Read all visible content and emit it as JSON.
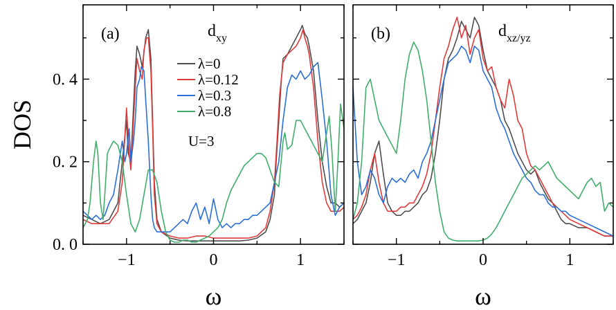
{
  "chart_data": [
    {
      "type": "line",
      "panel_label": "(a)",
      "orbital_main": "d",
      "orbital_sub": "xy",
      "xlabel": "ω",
      "ylabel": "DOS",
      "xlim": [
        -1.5,
        1.5
      ],
      "ylim": [
        0.0,
        0.58
      ],
      "xticks": [
        -1,
        0,
        1
      ],
      "xtick_labels": [
        "−1",
        "0",
        "1"
      ],
      "yticks": [
        0.0,
        0.2,
        0.4
      ],
      "ytick_labels": [
        "0. 0",
        "0. 2",
        "0. 4"
      ],
      "annotation": "U=3",
      "legend_position": "center-left",
      "series": [
        {
          "name": "λ=0",
          "color": "#4d4d4d",
          "x": [
            -1.5,
            -1.4,
            -1.3,
            -1.2,
            -1.1,
            -1.05,
            -1.0,
            -0.98,
            -0.95,
            -0.9,
            -0.88,
            -0.85,
            -0.82,
            -0.78,
            -0.75,
            -0.72,
            -0.7,
            -0.68,
            -0.65,
            -0.6,
            -0.5,
            -0.4,
            -0.3,
            -0.2,
            -0.1,
            0.0,
            0.1,
            0.2,
            0.3,
            0.4,
            0.5,
            0.6,
            0.65,
            0.7,
            0.72,
            0.75,
            0.78,
            0.8,
            0.85,
            0.9,
            0.95,
            1.0,
            1.02,
            1.05,
            1.08,
            1.1,
            1.15,
            1.2,
            1.25,
            1.3,
            1.35,
            1.4,
            1.45,
            1.5
          ],
          "y": [
            0.07,
            0.06,
            0.05,
            0.06,
            0.1,
            0.2,
            0.3,
            0.22,
            0.2,
            0.42,
            0.48,
            0.46,
            0.43,
            0.5,
            0.52,
            0.45,
            0.3,
            0.15,
            0.06,
            0.03,
            0.015,
            0.01,
            0.008,
            0.008,
            0.008,
            0.008,
            0.008,
            0.008,
            0.008,
            0.01,
            0.015,
            0.03,
            0.06,
            0.12,
            0.2,
            0.3,
            0.4,
            0.45,
            0.46,
            0.48,
            0.5,
            0.52,
            0.53,
            0.51,
            0.5,
            0.48,
            0.42,
            0.3,
            0.2,
            0.14,
            0.1,
            0.1,
            0.09,
            0.1
          ]
        },
        {
          "name": "λ=0.12",
          "color": "#e03a3a",
          "x": [
            -1.5,
            -1.4,
            -1.3,
            -1.2,
            -1.1,
            -1.05,
            -1.0,
            -0.97,
            -0.95,
            -0.92,
            -0.9,
            -0.88,
            -0.85,
            -0.82,
            -0.8,
            -0.77,
            -0.75,
            -0.72,
            -0.7,
            -0.68,
            -0.65,
            -0.6,
            -0.5,
            -0.4,
            -0.3,
            -0.2,
            -0.1,
            0.0,
            0.1,
            0.2,
            0.3,
            0.4,
            0.5,
            0.6,
            0.65,
            0.7,
            0.73,
            0.76,
            0.8,
            0.85,
            0.9,
            0.95,
            1.0,
            1.03,
            1.05,
            1.08,
            1.1,
            1.15,
            1.2,
            1.25,
            1.3,
            1.35,
            1.4,
            1.45,
            1.5
          ],
          "y": [
            0.06,
            0.05,
            0.05,
            0.05,
            0.08,
            0.15,
            0.33,
            0.22,
            0.18,
            0.3,
            0.38,
            0.45,
            0.42,
            0.4,
            0.47,
            0.5,
            0.5,
            0.42,
            0.28,
            0.12,
            0.05,
            0.03,
            0.02,
            0.015,
            0.015,
            0.02,
            0.02,
            0.015,
            0.015,
            0.015,
            0.015,
            0.015,
            0.02,
            0.04,
            0.08,
            0.15,
            0.25,
            0.36,
            0.44,
            0.46,
            0.47,
            0.48,
            0.5,
            0.52,
            0.5,
            0.48,
            0.46,
            0.38,
            0.25,
            0.15,
            0.1,
            0.08,
            0.08,
            0.08,
            0.09
          ]
        },
        {
          "name": "λ=0.3",
          "color": "#2a6fd6",
          "x": [
            -1.5,
            -1.45,
            -1.4,
            -1.35,
            -1.3,
            -1.25,
            -1.2,
            -1.15,
            -1.1,
            -1.05,
            -1.02,
            -1.0,
            -0.97,
            -0.95,
            -0.92,
            -0.9,
            -0.88,
            -0.85,
            -0.83,
            -0.8,
            -0.78,
            -0.75,
            -0.72,
            -0.7,
            -0.68,
            -0.65,
            -0.6,
            -0.55,
            -0.5,
            -0.45,
            -0.4,
            -0.35,
            -0.3,
            -0.25,
            -0.2,
            -0.15,
            -0.1,
            -0.05,
            0.0,
            0.05,
            0.1,
            0.15,
            0.2,
            0.25,
            0.3,
            0.35,
            0.4,
            0.45,
            0.5,
            0.55,
            0.6,
            0.65,
            0.7,
            0.75,
            0.8,
            0.85,
            0.9,
            0.95,
            1.0,
            1.05,
            1.1,
            1.15,
            1.2,
            1.25,
            1.3,
            1.35,
            1.4,
            1.45,
            1.5
          ],
          "y": [
            0.08,
            0.07,
            0.06,
            0.07,
            0.06,
            0.07,
            0.1,
            0.12,
            0.18,
            0.25,
            0.2,
            0.22,
            0.28,
            0.2,
            0.25,
            0.3,
            0.38,
            0.4,
            0.43,
            0.42,
            0.35,
            0.25,
            0.12,
            0.06,
            0.04,
            0.03,
            0.03,
            0.03,
            0.03,
            0.04,
            0.05,
            0.06,
            0.05,
            0.08,
            0.1,
            0.06,
            0.09,
            0.05,
            0.11,
            0.06,
            0.04,
            0.05,
            0.04,
            0.05,
            0.05,
            0.06,
            0.06,
            0.07,
            0.07,
            0.08,
            0.09,
            0.1,
            0.15,
            0.2,
            0.3,
            0.38,
            0.41,
            0.4,
            0.42,
            0.4,
            0.41,
            0.43,
            0.44,
            0.35,
            0.25,
            0.12,
            0.07,
            0.09,
            0.1
          ]
        },
        {
          "name": "λ=0.8",
          "color": "#3fae6a",
          "x": [
            -1.5,
            -1.45,
            -1.42,
            -1.38,
            -1.35,
            -1.33,
            -1.3,
            -1.27,
            -1.25,
            -1.22,
            -1.2,
            -1.15,
            -1.1,
            -1.05,
            -1.0,
            -0.95,
            -0.9,
            -0.85,
            -0.8,
            -0.75,
            -0.7,
            -0.65,
            -0.6,
            -0.55,
            -0.5,
            -0.45,
            -0.4,
            -0.35,
            -0.3,
            -0.25,
            -0.2,
            -0.15,
            -0.1,
            -0.05,
            0.0,
            0.05,
            0.1,
            0.15,
            0.2,
            0.25,
            0.3,
            0.35,
            0.4,
            0.45,
            0.5,
            0.55,
            0.6,
            0.65,
            0.7,
            0.75,
            0.8,
            0.82,
            0.85,
            0.9,
            0.95,
            1.0,
            1.05,
            1.1,
            1.15,
            1.2,
            1.25,
            1.3,
            1.33,
            1.36,
            1.4,
            1.43,
            1.46,
            1.5
          ],
          "y": [
            0.04,
            0.06,
            0.1,
            0.2,
            0.25,
            0.22,
            0.1,
            0.06,
            0.12,
            0.22,
            0.23,
            0.25,
            0.24,
            0.2,
            0.12,
            0.05,
            0.03,
            0.06,
            0.12,
            0.18,
            0.18,
            0.15,
            0.08,
            0.03,
            0.01,
            0.005,
            0.005,
            0.01,
            0.01,
            0.005,
            0.005,
            0.01,
            0.015,
            0.02,
            0.03,
            0.04,
            0.06,
            0.1,
            0.13,
            0.15,
            0.17,
            0.19,
            0.2,
            0.21,
            0.22,
            0.22,
            0.21,
            0.18,
            0.15,
            0.14,
            0.25,
            0.27,
            0.23,
            0.24,
            0.3,
            0.3,
            0.28,
            0.26,
            0.24,
            0.22,
            0.2,
            0.27,
            0.31,
            0.23,
            0.08,
            0.2,
            0.34,
            0.28
          ]
        }
      ]
    },
    {
      "type": "line",
      "panel_label": "(b)",
      "orbital_main": "d",
      "orbital_sub": "xz/yz",
      "xlabel": "ω",
      "ylabel": "",
      "xlim": [
        -1.5,
        1.5
      ],
      "ylim": [
        0.0,
        0.58
      ],
      "xticks": [
        -1,
        0,
        1
      ],
      "xtick_labels": [
        "−1",
        "0",
        "1"
      ],
      "yticks": [
        0.0,
        0.2,
        0.4
      ],
      "ytick_labels": [
        "",
        "",
        ""
      ],
      "series": [
        {
          "name": "λ=0",
          "color": "#4d4d4d",
          "x": [
            -1.5,
            -1.45,
            -1.4,
            -1.35,
            -1.3,
            -1.25,
            -1.2,
            -1.15,
            -1.1,
            -1.05,
            -1.0,
            -0.95,
            -0.9,
            -0.85,
            -0.8,
            -0.75,
            -0.7,
            -0.65,
            -0.6,
            -0.55,
            -0.5,
            -0.45,
            -0.4,
            -0.35,
            -0.3,
            -0.25,
            -0.2,
            -0.15,
            -0.1,
            -0.05,
            0.0,
            0.05,
            0.1,
            0.15,
            0.2,
            0.25,
            0.3,
            0.35,
            0.4,
            0.45,
            0.5,
            0.55,
            0.6,
            0.65,
            0.7,
            0.75,
            0.8,
            0.85,
            0.9,
            0.95,
            1.0,
            1.1,
            1.2,
            1.3,
            1.4,
            1.5
          ],
          "y": [
            0.05,
            0.06,
            0.08,
            0.1,
            0.15,
            0.22,
            0.25,
            0.17,
            0.1,
            0.08,
            0.07,
            0.07,
            0.08,
            0.08,
            0.09,
            0.1,
            0.12,
            0.13,
            0.16,
            0.22,
            0.3,
            0.4,
            0.45,
            0.47,
            0.5,
            0.54,
            0.52,
            0.5,
            0.55,
            0.53,
            0.47,
            0.42,
            0.4,
            0.38,
            0.35,
            0.3,
            0.28,
            0.25,
            0.22,
            0.2,
            0.18,
            0.17,
            0.18,
            0.15,
            0.13,
            0.11,
            0.1,
            0.08,
            0.06,
            0.05,
            0.05,
            0.04,
            0.04,
            0.03,
            0.02,
            0.02
          ]
        },
        {
          "name": "λ=0.12",
          "color": "#e03a3a",
          "x": [
            -1.5,
            -1.45,
            -1.4,
            -1.35,
            -1.3,
            -1.25,
            -1.2,
            -1.15,
            -1.1,
            -1.05,
            -1.0,
            -0.95,
            -0.9,
            -0.85,
            -0.8,
            -0.75,
            -0.7,
            -0.65,
            -0.6,
            -0.55,
            -0.5,
            -0.45,
            -0.4,
            -0.35,
            -0.3,
            -0.25,
            -0.2,
            -0.15,
            -0.1,
            -0.05,
            0.0,
            0.05,
            0.1,
            0.15,
            0.2,
            0.25,
            0.3,
            0.35,
            0.4,
            0.45,
            0.5,
            0.55,
            0.6,
            0.65,
            0.7,
            0.75,
            0.8,
            0.85,
            0.9,
            0.95,
            1.0,
            1.1,
            1.2,
            1.3,
            1.4,
            1.5
          ],
          "y": [
            0.06,
            0.07,
            0.09,
            0.12,
            0.18,
            0.22,
            0.15,
            0.1,
            0.08,
            0.08,
            0.08,
            0.09,
            0.09,
            0.1,
            0.1,
            0.12,
            0.14,
            0.17,
            0.22,
            0.3,
            0.38,
            0.45,
            0.48,
            0.52,
            0.55,
            0.5,
            0.53,
            0.46,
            0.5,
            0.52,
            0.45,
            0.42,
            0.43,
            0.38,
            0.35,
            0.33,
            0.4,
            0.36,
            0.3,
            0.28,
            0.22,
            0.19,
            0.18,
            0.16,
            0.14,
            0.12,
            0.1,
            0.09,
            0.08,
            0.07,
            0.06,
            0.05,
            0.04,
            0.03,
            0.02,
            0.02
          ]
        },
        {
          "name": "λ=0.3",
          "color": "#2a6fd6",
          "x": [
            -1.5,
            -1.45,
            -1.4,
            -1.35,
            -1.3,
            -1.25,
            -1.2,
            -1.15,
            -1.1,
            -1.05,
            -1.0,
            -0.95,
            -0.9,
            -0.85,
            -0.8,
            -0.75,
            -0.7,
            -0.65,
            -0.6,
            -0.55,
            -0.5,
            -0.45,
            -0.4,
            -0.35,
            -0.3,
            -0.25,
            -0.2,
            -0.15,
            -0.1,
            -0.05,
            0.0,
            0.05,
            0.1,
            0.15,
            0.2,
            0.25,
            0.3,
            0.35,
            0.4,
            0.45,
            0.5,
            0.55,
            0.6,
            0.65,
            0.7,
            0.75,
            0.8,
            0.85,
            0.9,
            0.95,
            1.0,
            1.1,
            1.2,
            1.3,
            1.4,
            1.5
          ],
          "y": [
            0.38,
            0.2,
            0.12,
            0.14,
            0.18,
            0.16,
            0.12,
            0.1,
            0.14,
            0.16,
            0.15,
            0.16,
            0.15,
            0.17,
            0.18,
            0.16,
            0.2,
            0.22,
            0.25,
            0.3,
            0.35,
            0.4,
            0.44,
            0.45,
            0.46,
            0.48,
            0.47,
            0.44,
            0.48,
            0.47,
            0.42,
            0.4,
            0.38,
            0.33,
            0.3,
            0.28,
            0.25,
            0.22,
            0.2,
            0.18,
            0.16,
            0.15,
            0.13,
            0.12,
            0.12,
            0.1,
            0.09,
            0.09,
            0.08,
            0.08,
            0.07,
            0.06,
            0.05,
            0.04,
            0.03,
            0.02
          ]
        },
        {
          "name": "λ=0.8",
          "color": "#3fae6a",
          "x": [
            -1.5,
            -1.45,
            -1.4,
            -1.35,
            -1.3,
            -1.25,
            -1.2,
            -1.15,
            -1.1,
            -1.05,
            -1.0,
            -0.95,
            -0.9,
            -0.85,
            -0.8,
            -0.75,
            -0.7,
            -0.65,
            -0.6,
            -0.55,
            -0.5,
            -0.45,
            -0.4,
            -0.35,
            -0.3,
            -0.25,
            -0.2,
            -0.15,
            -0.1,
            -0.05,
            0.0,
            0.05,
            0.1,
            0.15,
            0.2,
            0.25,
            0.3,
            0.35,
            0.4,
            0.45,
            0.5,
            0.55,
            0.6,
            0.65,
            0.7,
            0.75,
            0.8,
            0.85,
            0.9,
            0.95,
            1.0,
            1.05,
            1.1,
            1.15,
            1.2,
            1.25,
            1.3,
            1.35,
            1.4,
            1.45,
            1.5
          ],
          "y": [
            0.06,
            0.1,
            0.2,
            0.38,
            0.4,
            0.35,
            0.3,
            0.28,
            0.26,
            0.24,
            0.22,
            0.3,
            0.4,
            0.46,
            0.49,
            0.47,
            0.42,
            0.35,
            0.25,
            0.15,
            0.08,
            0.03,
            0.015,
            0.01,
            0.008,
            0.008,
            0.008,
            0.008,
            0.008,
            0.008,
            0.01,
            0.015,
            0.025,
            0.04,
            0.06,
            0.08,
            0.1,
            0.12,
            0.14,
            0.16,
            0.17,
            0.18,
            0.19,
            0.18,
            0.19,
            0.2,
            0.18,
            0.16,
            0.15,
            0.14,
            0.13,
            0.12,
            0.11,
            0.13,
            0.15,
            0.16,
            0.14,
            0.15,
            0.08,
            0.1,
            0.09
          ]
        }
      ]
    }
  ]
}
